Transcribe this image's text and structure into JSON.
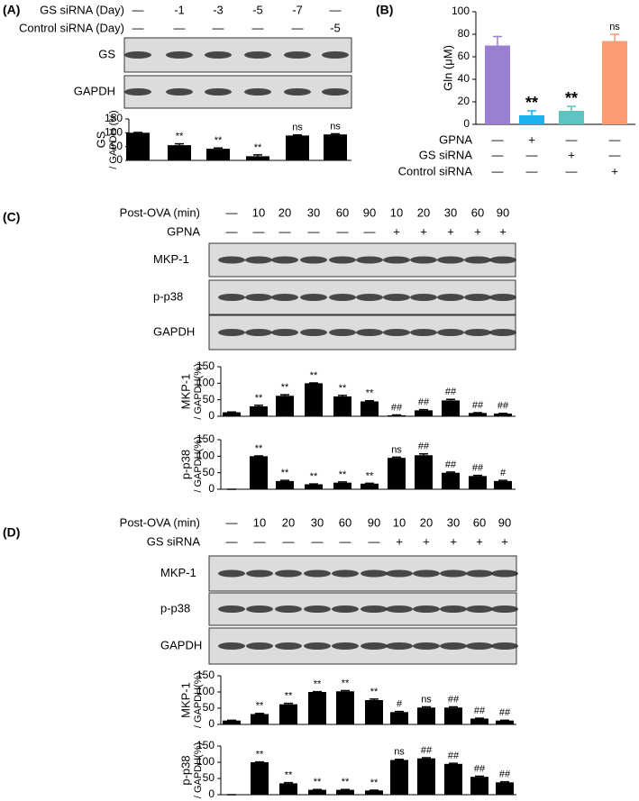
{
  "panels": [
    {
      "label": "(A)",
      "conditions": [
        {
          "name": "GS siRNA (Day)",
          "values": [
            "—",
            "-1",
            "-3",
            "-5",
            "-7",
            "—"
          ]
        },
        {
          "name": "Control siRNA (Day)",
          "values": [
            "—",
            "—",
            "—",
            "—",
            "—",
            "-5"
          ]
        }
      ],
      "blots": [
        "GS",
        "GAPDH"
      ]
    },
    {
      "label": "(B)",
      "conditions": [
        {
          "name": "GPNA",
          "values": [
            "—",
            "+",
            "—",
            "—"
          ]
        },
        {
          "name": "GS siRNA",
          "values": [
            "—",
            "—",
            "+",
            "—"
          ]
        },
        {
          "name": "Control siRNA",
          "values": [
            "—",
            "—",
            "—",
            "+"
          ]
        }
      ],
      "blots": []
    },
    {
      "label": "(C)",
      "conditions": [
        {
          "name": "Post-OVA (min)",
          "values": [
            "—",
            "10",
            "20",
            "30",
            "60",
            "90",
            "10",
            "20",
            "30",
            "60",
            "90"
          ]
        },
        {
          "name": "GPNA",
          "values": [
            "—",
            "—",
            "—",
            "—",
            "—",
            "—",
            "+",
            "+",
            "+",
            "+",
            "+"
          ]
        }
      ],
      "blots": [
        "MKP-1",
        "p-p38",
        "GAPDH"
      ]
    },
    {
      "label": "(D)",
      "conditions": [
        {
          "name": "Post-OVA (min)",
          "values": [
            "—",
            "10",
            "20",
            "30",
            "60",
            "90",
            "10",
            "20",
            "30",
            "60",
            "90"
          ]
        },
        {
          "name": "GS siRNA",
          "values": [
            "—",
            "—",
            "—",
            "—",
            "—",
            "—",
            "+",
            "+",
            "+",
            "+",
            "+"
          ]
        }
      ],
      "blots": [
        "MKP-1",
        "p-p38",
        "GAPDH"
      ]
    }
  ],
  "chart_data": [
    {
      "type": "bar",
      "ylabel": [
        "GS",
        "/ GAPDH (%)"
      ],
      "color": "#000000",
      "values": [
        100,
        55,
        42,
        15,
        90,
        94
      ],
      "errors": [
        1,
        5,
        3,
        5,
        2,
        2
      ],
      "annotations": [
        null,
        "**",
        "**",
        "**",
        "ns",
        "ns"
      ],
      "ylim": [
        0,
        150
      ],
      "yticks": [
        0,
        50,
        100,
        150
      ]
    },
    {
      "type": "bar",
      "ylabel": [
        "Gln (μM)"
      ],
      "colors": [
        "#9b7fd0",
        "#1ab2ec",
        "#5cc4c1",
        "#f99c72"
      ],
      "values": [
        70,
        8,
        12,
        74
      ],
      "errors": [
        8,
        4,
        4,
        6
      ],
      "annotations": [
        null,
        "**",
        "**",
        "ns"
      ],
      "ylim": [
        0,
        100
      ],
      "yticks": [
        0,
        20,
        40,
        60,
        80,
        100
      ]
    },
    {
      "type": "bar",
      "ylabel": [
        "MKP-1",
        "/ GAPDH(%)"
      ],
      "color": "#000000",
      "values": [
        12,
        30,
        62,
        100,
        60,
        45,
        3,
        18,
        48,
        10,
        8
      ],
      "errors": [
        1,
        3,
        3,
        1,
        3,
        2,
        1,
        2,
        3,
        1,
        1
      ],
      "annotations": [
        null,
        "**",
        "**",
        "**",
        "**",
        "**",
        "##",
        "##",
        "##",
        "##",
        "##"
      ],
      "ylim": [
        0,
        150
      ],
      "yticks": [
        0,
        50,
        100,
        150
      ]
    },
    {
      "type": "bar",
      "ylabel": [
        "p-p38",
        "/ GAPDH(%)"
      ],
      "color": "#000000",
      "values": [
        0,
        100,
        25,
        15,
        20,
        17,
        95,
        103,
        50,
        40,
        25
      ],
      "errors": [
        0,
        1,
        2,
        1,
        2,
        1,
        2,
        4,
        2,
        2,
        2
      ],
      "annotations": [
        null,
        "**",
        "**",
        "**",
        "**",
        "**",
        "ns",
        "##",
        "##",
        "##",
        "#"
      ],
      "ylim": [
        0,
        150
      ],
      "yticks": [
        0,
        50,
        100,
        150
      ]
    },
    {
      "type": "bar",
      "ylabel": [
        "MKP-1",
        "/ GAPDH(%)"
      ],
      "color": "#000000",
      "values": [
        12,
        32,
        62,
        100,
        102,
        75,
        38,
        52,
        52,
        18,
        12
      ],
      "errors": [
        1,
        2,
        3,
        1,
        2,
        3,
        2,
        2,
        2,
        1,
        1
      ],
      "annotations": [
        null,
        "**",
        "**",
        "**",
        "**",
        "**",
        "#",
        "ns",
        "##",
        "##",
        "##"
      ],
      "ylim": [
        0,
        150
      ],
      "yticks": [
        0,
        50,
        100,
        150
      ]
    },
    {
      "type": "bar",
      "ylabel": [
        "p-p38",
        "/ GAPDH(%)"
      ],
      "color": "#000000",
      "values": [
        0,
        100,
        35,
        15,
        15,
        13,
        107,
        112,
        95,
        55,
        38
      ],
      "errors": [
        0,
        1,
        2,
        1,
        1,
        1,
        2,
        2,
        2,
        2,
        2
      ],
      "annotations": [
        null,
        "**",
        "**",
        "**",
        "**",
        "**",
        "ns",
        "##",
        "##",
        "##",
        "##"
      ],
      "ylim": [
        0,
        150
      ],
      "yticks": [
        0,
        50,
        100,
        150
      ]
    }
  ]
}
